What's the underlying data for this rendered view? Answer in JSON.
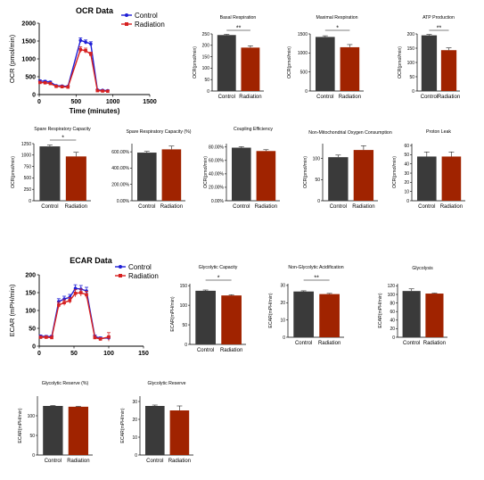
{
  "chart_data": [
    {
      "type": "line",
      "title": "OCR Data",
      "xlabel": "Time (minutes)",
      "ylabel": "OCR (pmol/min)",
      "xlim": [
        0,
        1500
      ],
      "ylim": [
        0,
        2000
      ],
      "xticks": [
        "0",
        "500",
        "1000",
        "1500"
      ],
      "yticks": [
        "0",
        "500",
        "1000",
        "1500",
        "2000"
      ],
      "legend": "top-right",
      "x": [
        10,
        80,
        150,
        230,
        310,
        390,
        560,
        630,
        700,
        790,
        860,
        930
      ],
      "series": [
        {
          "name": "Control",
          "color": "#1f1fd6",
          "values": [
            380,
            370,
            350,
            250,
            240,
            230,
            1520,
            1470,
            1420,
            130,
            120,
            110
          ],
          "err": [
            30,
            25,
            25,
            20,
            20,
            20,
            70,
            60,
            60,
            20,
            20,
            20
          ]
        },
        {
          "name": "Radiation",
          "color": "#d62020",
          "values": [
            340,
            330,
            310,
            230,
            220,
            210,
            1260,
            1230,
            1130,
            110,
            100,
            95
          ],
          "err": [
            30,
            25,
            25,
            20,
            20,
            20,
            80,
            70,
            60,
            20,
            20,
            20
          ]
        }
      ]
    },
    {
      "type": "bar",
      "title": "Basal Respiration",
      "ylabel": "OCR(pmol/min)",
      "categories": [
        "Control",
        "Radiation"
      ],
      "values": [
        245,
        190
      ],
      "err": [
        3,
        8
      ],
      "ylim": [
        0,
        250
      ],
      "yticks": [
        "0",
        "50",
        "100",
        "150",
        "200",
        "250"
      ],
      "sig": "**"
    },
    {
      "type": "bar",
      "title": "Maximal Respiration",
      "ylabel": "OCR(pmol/min)",
      "categories": [
        "Control",
        "Radiation"
      ],
      "values": [
        1420,
        1150
      ],
      "err": [
        30,
        70
      ],
      "ylim": [
        0,
        1500
      ],
      "yticks": [
        "0",
        "500",
        "1000",
        "1500"
      ],
      "sig": "*"
    },
    {
      "type": "bar",
      "title": "ATP Production",
      "ylabel": "OCR(pmol/min)",
      "categories": [
        "Control",
        "Radiation"
      ],
      "values": [
        195,
        143
      ],
      "err": [
        3,
        8
      ],
      "ylim": [
        0,
        200
      ],
      "yticks": [
        "0",
        "50",
        "100",
        "150",
        "200"
      ],
      "sig": "**"
    },
    {
      "type": "bar",
      "title": "Spare Respiratory Capacity",
      "ylabel": "OCR(pmol/min)",
      "categories": [
        "Control",
        "Radiation"
      ],
      "values": [
        1190,
        970
      ],
      "err": [
        30,
        90
      ],
      "ylim": [
        0,
        1250
      ],
      "yticks": [
        "0",
        "250",
        "500",
        "750",
        "1000",
        "1250"
      ],
      "sig": "*"
    },
    {
      "type": "bar",
      "title": "Spare Respiratory Capacity  (%)",
      "ylabel": "",
      "categories": [
        "Control",
        "Radiation"
      ],
      "values": [
        590,
        630
      ],
      "err": [
        15,
        40
      ],
      "ylim": [
        0,
        700
      ],
      "yticks": [
        "0.00%",
        "200.00%",
        "400.00%",
        "600.00%"
      ],
      "ytick_values": [
        0,
        200,
        400,
        600
      ],
      "sig": ""
    },
    {
      "type": "bar",
      "title": "Coupling Efficiency",
      "ylabel": "OCR(pmol/min)",
      "categories": [
        "Control",
        "Radiation"
      ],
      "values": [
        79,
        74
      ],
      "err": [
        1.5,
        2
      ],
      "ylim": [
        0,
        85
      ],
      "yticks": [
        "0.00%",
        "20.00%",
        "40.00%",
        "60.00%",
        "80.00%"
      ],
      "ytick_values": [
        0,
        20,
        40,
        60,
        80
      ],
      "sig": ""
    },
    {
      "type": "bar",
      "title": "Non-Mitochondrial Oxygen Consumption",
      "ylabel": "OCR(pmol/min)",
      "categories": [
        "Control",
        "Radiation"
      ],
      "values": [
        103,
        120
      ],
      "err": [
        5,
        10
      ],
      "ylim": [
        0,
        135
      ],
      "yticks": [
        "0",
        "50",
        "100"
      ],
      "sig": ""
    },
    {
      "type": "bar",
      "title": "Proton Leak",
      "ylabel": "OCR(pmol/min)",
      "categories": [
        "Control",
        "Radiation"
      ],
      "values": [
        48,
        48
      ],
      "err": [
        5,
        5
      ],
      "ylim": [
        0,
        62
      ],
      "yticks": [
        "0",
        "10",
        "20",
        "30",
        "40",
        "50",
        "60"
      ],
      "sig": ""
    },
    {
      "type": "line",
      "title": "ECAR Data",
      "xlabel": "",
      "ylabel": "ECAR (mPH/min)",
      "xlim": [
        0,
        150
      ],
      "ylim": [
        0,
        200
      ],
      "xticks": [
        "0",
        "50",
        "100",
        "150"
      ],
      "yticks": [
        "0",
        "50",
        "100",
        "150",
        "200"
      ],
      "legend": "top-right",
      "x": [
        2,
        10,
        18,
        28,
        36,
        44,
        52,
        60,
        68,
        80,
        88,
        100
      ],
      "series": [
        {
          "name": "Control",
          "color": "#1f1fd6",
          "values": [
            28,
            27,
            27,
            125,
            132,
            137,
            162,
            160,
            155,
            27,
            22,
            23
          ],
          "err": [
            3,
            3,
            3,
            8,
            8,
            8,
            10,
            10,
            10,
            4,
            4,
            4
          ]
        },
        {
          "name": "Radiation",
          "color": "#d62020",
          "values": [
            25,
            25,
            24,
            115,
            122,
            128,
            148,
            150,
            144,
            24,
            20,
            26
          ],
          "err": [
            3,
            3,
            3,
            8,
            8,
            8,
            10,
            10,
            10,
            4,
            4,
            12
          ]
        }
      ]
    },
    {
      "type": "bar",
      "title": "Glycolytic Capacity",
      "ylabel": "ECAR(mPH/min)",
      "categories": [
        "Control",
        "Radiation"
      ],
      "values": [
        137,
        125
      ],
      "err": [
        2,
        2
      ],
      "ylim": [
        0,
        155
      ],
      "yticks": [
        "0",
        "50",
        "100",
        "150"
      ],
      "sig": "*"
    },
    {
      "type": "bar",
      "title": "Non-Glycolytic Acidification",
      "ylabel": "ECAR(mPH/min)",
      "categories": [
        "Control",
        "Radiation"
      ],
      "values": [
        26.5,
        25
      ],
      "err": [
        0.4,
        0.4
      ],
      "ylim": [
        0,
        31
      ],
      "yticks": [
        "0",
        "10",
        "20",
        "30"
      ],
      "sig": "**"
    },
    {
      "type": "bar",
      "title": "Glycolysis",
      "ylabel": "ECAR(mPH/min)",
      "categories": [
        "Control",
        "Radiation"
      ],
      "values": [
        108,
        102
      ],
      "err": [
        5,
        1
      ],
      "ylim": [
        0,
        125
      ],
      "yticks": [
        "0",
        "20",
        "40",
        "60",
        "80",
        "100",
        "120"
      ],
      "sig": ""
    },
    {
      "type": "bar",
      "title": "Glycolytic Reserve (%)",
      "ylabel": "ECAR(mPH/min)",
      "categories": [
        "Control",
        "Radiation"
      ],
      "values": [
        125,
        123
      ],
      "err": [
        1,
        1
      ],
      "ylim": [
        0,
        150
      ],
      "yticks": [
        "0",
        "50",
        "100"
      ],
      "sig": ""
    },
    {
      "type": "bar",
      "title": "Glycolytic Reserve",
      "ylabel": "ECAR(mPH/min)",
      "categories": [
        "Control",
        "Radiation"
      ],
      "values": [
        27.5,
        25
      ],
      "err": [
        0.5,
        2.5
      ],
      "ylim": [
        0,
        33
      ],
      "yticks": [
        "0",
        "10",
        "20",
        "30"
      ],
      "sig": ""
    }
  ],
  "colors": {
    "control_bar": "#3a3a3a",
    "radiation_bar": "#a02300",
    "axis": "#000000"
  }
}
